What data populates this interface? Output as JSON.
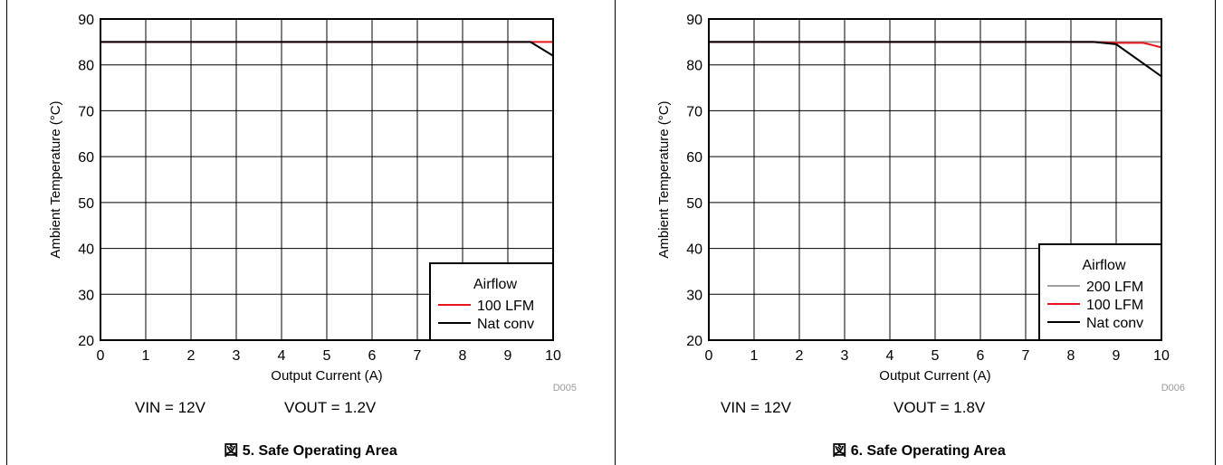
{
  "chart_data": [
    {
      "type": "line",
      "xlabel": "Output Current (A)",
      "ylabel": "Ambient Temperature (°C)",
      "xlim": [
        0,
        10
      ],
      "ylim": [
        20,
        90
      ],
      "xticks": [
        0,
        1,
        2,
        3,
        4,
        5,
        6,
        7,
        8,
        9,
        10
      ],
      "yticks": [
        20,
        30,
        40,
        50,
        60,
        70,
        80,
        90
      ],
      "grid": true,
      "legend_title": "Airflow",
      "legend_position": "bottom-right",
      "series": [
        {
          "name": "100 LFM",
          "color": "#e8141b",
          "x": [
            0,
            9.5,
            10
          ],
          "y": [
            85,
            85,
            85
          ]
        },
        {
          "name": "Nat conv",
          "color": "#000000",
          "x": [
            0,
            9.5,
            10
          ],
          "y": [
            85,
            85,
            82
          ]
        }
      ],
      "code": "D005",
      "vin": "VIN = 12V",
      "vout": "VOUT = 1.2V",
      "caption": "図 5. Safe Operating Area"
    },
    {
      "type": "line",
      "xlabel": "Output Current (A)",
      "ylabel": "Ambient Temperature (°C)",
      "xlim": [
        0,
        10
      ],
      "ylim": [
        20,
        90
      ],
      "xticks": [
        0,
        1,
        2,
        3,
        4,
        5,
        6,
        7,
        8,
        9,
        10
      ],
      "yticks": [
        20,
        30,
        40,
        50,
        60,
        70,
        80,
        90
      ],
      "grid": true,
      "legend_title": "Airflow",
      "legend_position": "bottom-right",
      "series": [
        {
          "name": "200 LFM",
          "color": "#a0a0a0",
          "x": [
            0,
            10
          ],
          "y": [
            85,
            85
          ]
        },
        {
          "name": "100 LFM",
          "color": "#e8141b",
          "x": [
            0,
            8.5,
            9,
            9.6,
            10
          ],
          "y": [
            85,
            85,
            84.8,
            84.8,
            83.8
          ]
        },
        {
          "name": "Nat conv",
          "color": "#000000",
          "x": [
            0,
            8.5,
            9,
            10
          ],
          "y": [
            85,
            85,
            84.5,
            77.5
          ]
        }
      ],
      "code": "D006",
      "vin": "VIN = 12V",
      "vout": "VOUT = 1.8V",
      "caption": "図 6. Safe Operating Area"
    }
  ]
}
